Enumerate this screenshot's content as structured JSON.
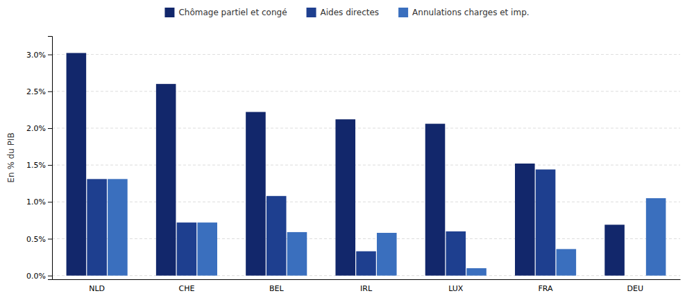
{
  "chart_data": {
    "type": "bar",
    "ylabel": "En % du PIB",
    "categories": [
      "NLD",
      "CHE",
      "BEL",
      "IRL",
      "LUX",
      "FRA",
      "DEU"
    ],
    "series": [
      {
        "name": "Chômage partiel et congé",
        "color": "#12276b",
        "values": [
          3.02,
          2.6,
          2.22,
          2.12,
          2.06,
          1.52,
          0.69
        ]
      },
      {
        "name": "Aides directes",
        "color": "#1e3f8f",
        "values": [
          1.31,
          0.72,
          1.08,
          0.33,
          0.6,
          1.44,
          0.0
        ]
      },
      {
        "name": "Annulations charges et imp.",
        "color": "#3a6fbe",
        "values": [
          1.31,
          0.72,
          0.59,
          0.58,
          0.1,
          0.36,
          1.05
        ]
      }
    ],
    "ylim": [
      -0.05,
      3.25
    ],
    "yticks": [
      {
        "value": 0.0,
        "label": "0.0%"
      },
      {
        "value": 0.5,
        "label": "0.5%"
      },
      {
        "value": 1.0,
        "label": "1.0%"
      },
      {
        "value": 1.5,
        "label": "1.5%"
      },
      {
        "value": 2.0,
        "label": "2.0%"
      },
      {
        "value": 2.5,
        "label": "2.5%"
      },
      {
        "value": 3.0,
        "label": "3.0%"
      }
    ],
    "grid": true,
    "legend": "top"
  }
}
